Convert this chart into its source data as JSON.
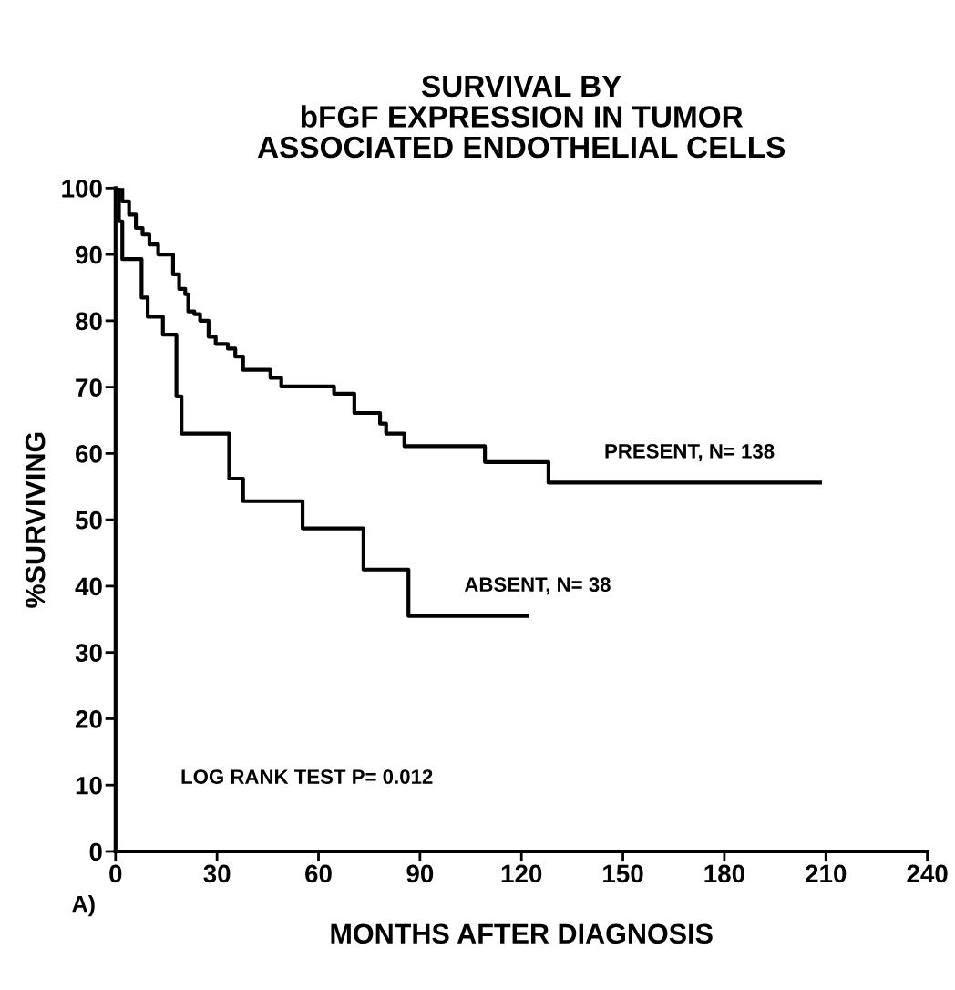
{
  "chart_data": {
    "type": "step",
    "title": "SURVIVAL BY\nbFGF EXPRESSION IN TUMOR\nASSOCIATED ENDOTHELIAL CELLS",
    "xlabel": "MONTHS AFTER DIAGNOSIS",
    "ylabel": "%SURVIVING",
    "series": [
      {
        "name": "PRESENT, N= 138",
        "color": "#000000",
        "x": [
          0,
          2,
          4,
          6,
          8,
          10,
          12.6,
          17,
          18.8,
          20.6,
          21.5,
          23.3,
          25,
          27.5,
          29.6,
          33.2,
          35.4,
          37.7,
          45.8,
          49,
          64.6,
          70.6,
          78.2,
          80,
          85.4,
          109.2,
          128,
          208.3
        ],
        "values": [
          100,
          98,
          96,
          94,
          93,
          91.5,
          90,
          87,
          84.8,
          84,
          81.4,
          81,
          80,
          77.6,
          76.5,
          75.8,
          74.6,
          72.6,
          71.4,
          70.1,
          69,
          66.1,
          64.5,
          63,
          61.1,
          58.7,
          55.6,
          55.6
        ]
      },
      {
        "name": "ABSENT, N= 38",
        "color": "#000000",
        "x": [
          0,
          1,
          2,
          7.7,
          9.5,
          14,
          18,
          19.5,
          20.6,
          33.6,
          37.7,
          55.3,
          73.3,
          86.6,
          121.8
        ],
        "values": [
          100,
          95,
          89.3,
          83.5,
          80.6,
          77.9,
          68.6,
          63,
          63,
          56.2,
          52.8,
          48.7,
          42.5,
          35.5,
          35.5
        ]
      }
    ],
    "annotations": [
      "LOG RANK TEST P= 0.012",
      "A)"
    ],
    "xlim": [
      0,
      240
    ],
    "xticks": [
      0,
      30,
      60,
      90,
      120,
      150,
      180,
      210,
      240
    ],
    "ylim": [
      0,
      100
    ],
    "yticks": [
      0,
      10,
      20,
      30,
      40,
      50,
      60,
      70,
      80,
      90,
      100
    ],
    "grid": false,
    "legend": false
  }
}
